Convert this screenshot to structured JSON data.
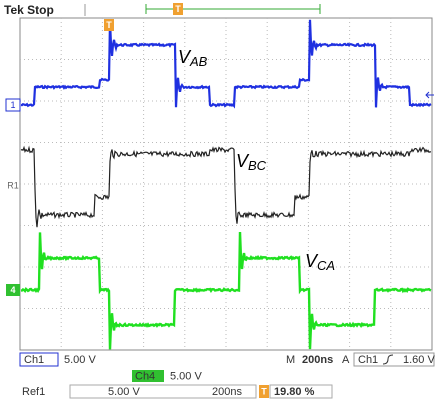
{
  "header": {
    "status": "Tek Stop",
    "trigger_marker": "T"
  },
  "trace_labels": [
    {
      "main": "V",
      "sub": "AB"
    },
    {
      "main": "V",
      "sub": "BC"
    },
    {
      "main": "V",
      "sub": "CA"
    }
  ],
  "channel_markers": [
    "1",
    "R1",
    "4"
  ],
  "status_bar": {
    "row1": [
      "Ch1",
      "5.00 V",
      "M",
      "200ns",
      "A",
      "Ch1",
      "1.60 V"
    ],
    "row2": [
      "Ch4",
      "5.00 V"
    ],
    "row3": [
      "Ref1",
      "5.00 V",
      "200ns",
      "T",
      "19.80 %"
    ]
  }
}
